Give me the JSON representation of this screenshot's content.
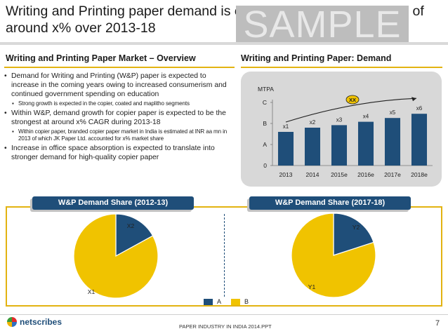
{
  "slide": {
    "title": "Writing and Printing paper demand is expected to grow at a CAGR of around x% over 2013-18",
    "watermark": "SAMPLE"
  },
  "overview": {
    "heading": "Writing and Printing Paper Market – Overview",
    "bullets": [
      "Demand for Writing and Printing (W&P) paper is expected to increase in the coming years owing to increased consumerism and continued government spending on education",
      "Strong growth is expected in the copier, coated and maplitho segments",
      "Within W&P, demand growth for copier paper is expected to be the strongest at around x% CAGR during 2013-18",
      "Within copier paper, branded copier paper market in India is estimated at INR aa mn in 2013 of which JK Paper Ltd. accounted for x% market share",
      "Increase in office space absorption is expected to translate into stronger demand for high-quality copier paper"
    ]
  },
  "demand": {
    "heading": "Writing and Printing Paper: Demand"
  },
  "share": {
    "tab_left": "W&P Demand Share (2012-13)",
    "tab_right": "W&P Demand Share (2017-18)",
    "legend": [
      "A",
      "B"
    ]
  },
  "footer": {
    "logo_text": "netscribes",
    "text": "PAPER INDUSTRY IN INDIA 2014.PPT",
    "page": "7"
  },
  "colors": {
    "navy": "#1f4e79",
    "gold": "#f0c300",
    "accent": "#e3b311"
  },
  "chart_data": [
    {
      "type": "bar",
      "title": "",
      "ylabel": "MTPA",
      "categories": [
        "2013",
        "2014",
        "2015e",
        "2016e",
        "2017e",
        "2018e"
      ],
      "values": [
        0.8,
        0.9,
        0.96,
        1.04,
        1.13,
        1.23
      ],
      "data_labels": [
        "x1",
        "x2",
        "x3",
        "x4",
        "x5",
        "x6"
      ],
      "y_ticks": [
        {
          "label": "0",
          "value": 0
        },
        {
          "label": "A",
          "value": 0.5
        },
        {
          "label": "B",
          "value": 1.0
        },
        {
          "label": "C",
          "value": 1.5
        }
      ],
      "ylim": [
        0,
        1.5
      ],
      "grid": false,
      "annotation": "XX",
      "series_color": "#1f4e79"
    },
    {
      "type": "pie",
      "title": "W&P Demand Share (2012-13)",
      "slices": [
        {
          "name": "A",
          "label": "X2",
          "value": 17,
          "color": "#1f4e79"
        },
        {
          "name": "B",
          "label": "X1",
          "value": 83,
          "color": "#f0c300"
        }
      ]
    },
    {
      "type": "pie",
      "title": "W&P Demand Share (2017-18)",
      "slices": [
        {
          "name": "A",
          "label": "Y2",
          "value": 20,
          "color": "#1f4e79"
        },
        {
          "name": "B",
          "label": "Y1",
          "value": 80,
          "color": "#f0c300"
        }
      ]
    }
  ]
}
